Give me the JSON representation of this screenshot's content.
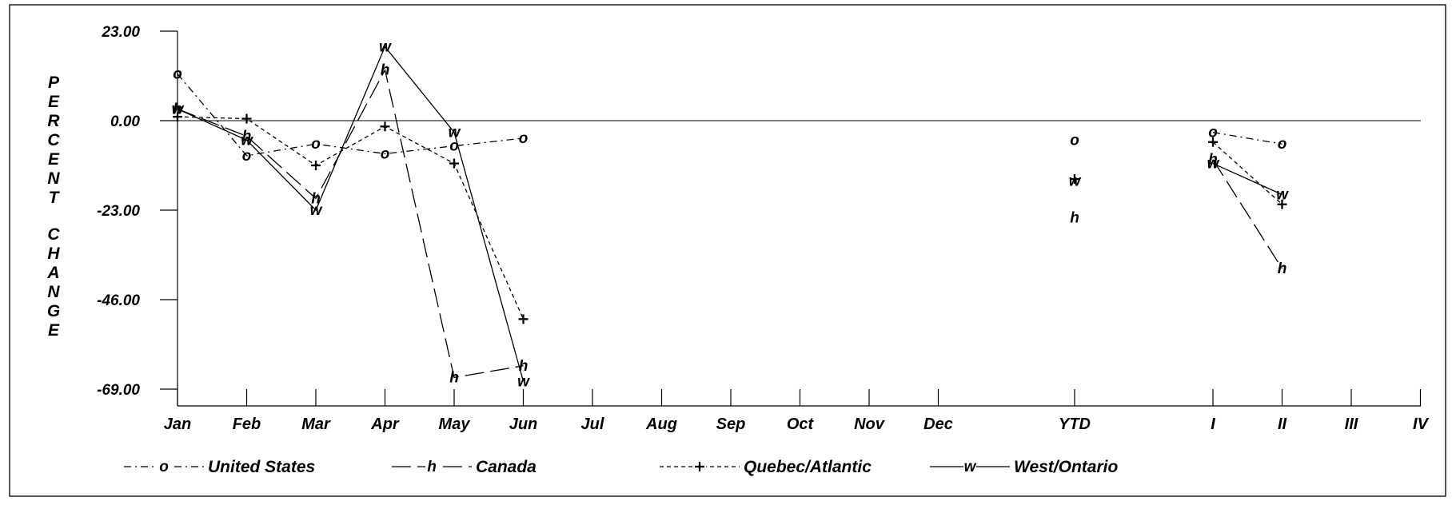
{
  "chart_data": {
    "type": "line",
    "title": "",
    "ylabel": "PERCENT CHANGE",
    "xlabel": "",
    "ylim": [
      -69,
      23
    ],
    "yticks": [
      "23.00",
      "0.00",
      "-23.00",
      "-46.00",
      "-69.00"
    ],
    "ytick_values": [
      23,
      0,
      -23,
      -46,
      -69
    ],
    "categories": [
      "Jan",
      "Feb",
      "Mar",
      "Apr",
      "May",
      "Jun",
      "Jul",
      "Aug",
      "Sep",
      "Oct",
      "Nov",
      "Dec",
      "YTD",
      "I",
      "II",
      "III",
      "IV"
    ],
    "legend_position": "bottom",
    "series": [
      {
        "name": "United States",
        "marker": "o",
        "line_style": "dash-dot",
        "monthly": [
          12,
          -9,
          -6,
          -8.5,
          -6.5,
          -4.5
        ],
        "ytd": -5,
        "quarterly": [
          -3,
          -6
        ]
      },
      {
        "name": "Canada",
        "marker": "h",
        "line_style": "long-dash",
        "monthly": [
          3,
          -4,
          -20,
          13,
          -66,
          -63
        ],
        "ytd": -25,
        "quarterly": [
          -10,
          -38
        ]
      },
      {
        "name": "Quebec/Atlantic",
        "marker": "+",
        "line_style": "short-dash",
        "monthly": [
          1,
          0.5,
          -11.5,
          -1.5,
          -11,
          -51
        ],
        "ytd": -15,
        "quarterly": [
          -5.5,
          -21.5
        ]
      },
      {
        "name": "West/Ontario",
        "marker": "w",
        "line_style": "solid",
        "monthly": [
          3,
          -5,
          -23,
          19,
          -3,
          -67
        ],
        "ytd": -15.5,
        "quarterly": [
          -11,
          -19
        ]
      }
    ]
  }
}
